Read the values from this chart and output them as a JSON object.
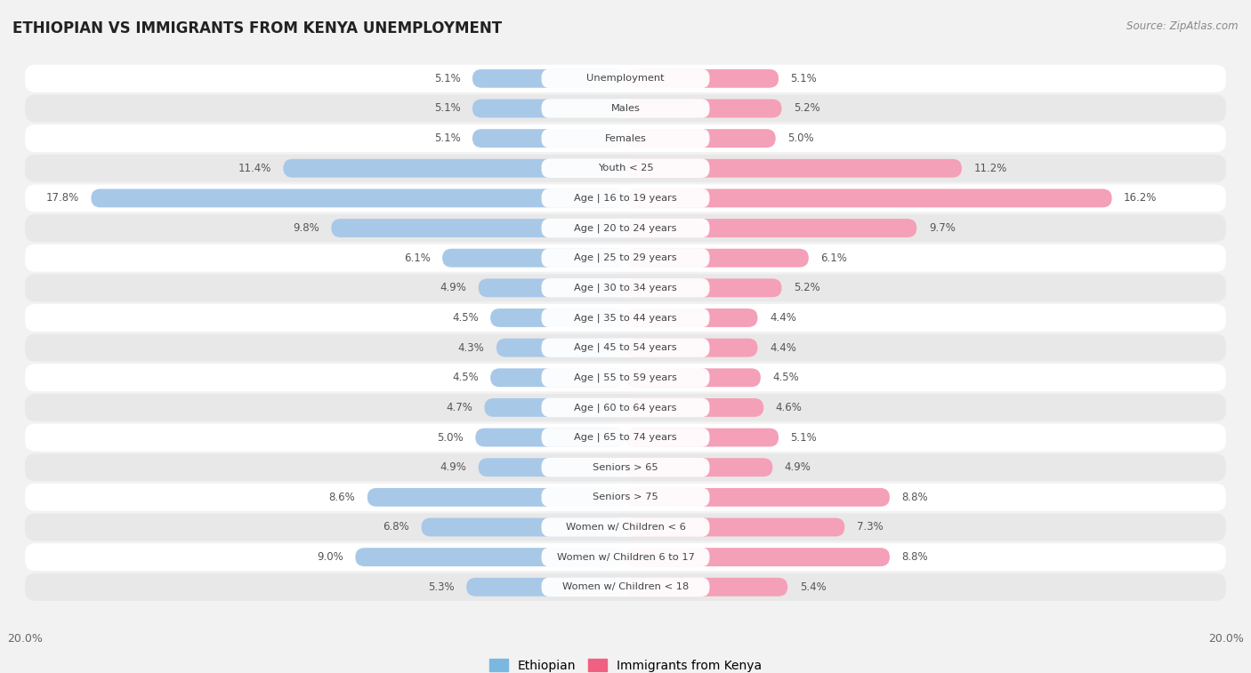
{
  "title": "ETHIOPIAN VS IMMIGRANTS FROM KENYA UNEMPLOYMENT",
  "source": "Source: ZipAtlas.com",
  "categories": [
    "Unemployment",
    "Males",
    "Females",
    "Youth < 25",
    "Age | 16 to 19 years",
    "Age | 20 to 24 years",
    "Age | 25 to 29 years",
    "Age | 30 to 34 years",
    "Age | 35 to 44 years",
    "Age | 45 to 54 years",
    "Age | 55 to 59 years",
    "Age | 60 to 64 years",
    "Age | 65 to 74 years",
    "Seniors > 65",
    "Seniors > 75",
    "Women w/ Children < 6",
    "Women w/ Children 6 to 17",
    "Women w/ Children < 18"
  ],
  "ethiopian": [
    5.1,
    5.1,
    5.1,
    11.4,
    17.8,
    9.8,
    6.1,
    4.9,
    4.5,
    4.3,
    4.5,
    4.7,
    5.0,
    4.9,
    8.6,
    6.8,
    9.0,
    5.3
  ],
  "kenya": [
    5.1,
    5.2,
    5.0,
    11.2,
    16.2,
    9.7,
    6.1,
    5.2,
    4.4,
    4.4,
    4.5,
    4.6,
    5.1,
    4.9,
    8.8,
    7.3,
    8.8,
    5.4
  ],
  "color_ethiopian": "#a8c8e8",
  "color_kenya": "#f4a0b8",
  "color_ethiopian_legend": "#7ab8e0",
  "color_kenya_legend": "#f06080",
  "xlim": 20.0,
  "background_color": "#f2f2f2",
  "row_white": "#ffffff",
  "row_gray": "#e8e8e8",
  "label_bg": "#ffffff"
}
